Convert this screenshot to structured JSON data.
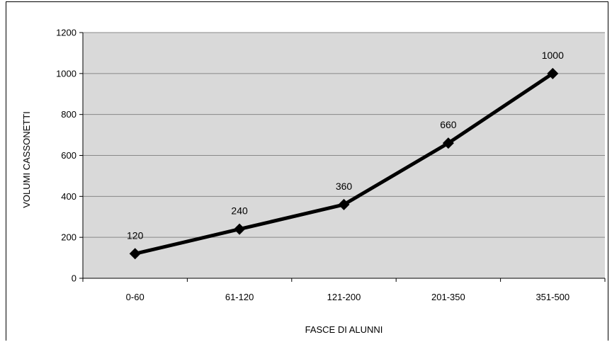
{
  "chart_data": {
    "type": "line",
    "title": "",
    "xlabel": "FASCE DI ALUNNI",
    "ylabel": "VOLUMI CASSONETTI",
    "categories": [
      "0-60",
      "61-120",
      "121-200",
      "201-350",
      "351-500"
    ],
    "series": [
      {
        "values": [
          120,
          240,
          360,
          660,
          1000
        ],
        "data_labels": [
          "120",
          "240",
          "360",
          "660",
          "1000"
        ]
      }
    ],
    "ylim": [
      0,
      1200
    ],
    "yticks": [
      0,
      200,
      400,
      600,
      800,
      1000,
      1200
    ],
    "ytick_labels": [
      "0",
      "200",
      "400",
      "600",
      "800",
      "1000",
      "1200"
    ],
    "grid": true,
    "legend": "none",
    "colors": {
      "plot_background": "#d9d9d9",
      "line": "#000000",
      "gridline": "#888888"
    },
    "marker": "diamond"
  }
}
